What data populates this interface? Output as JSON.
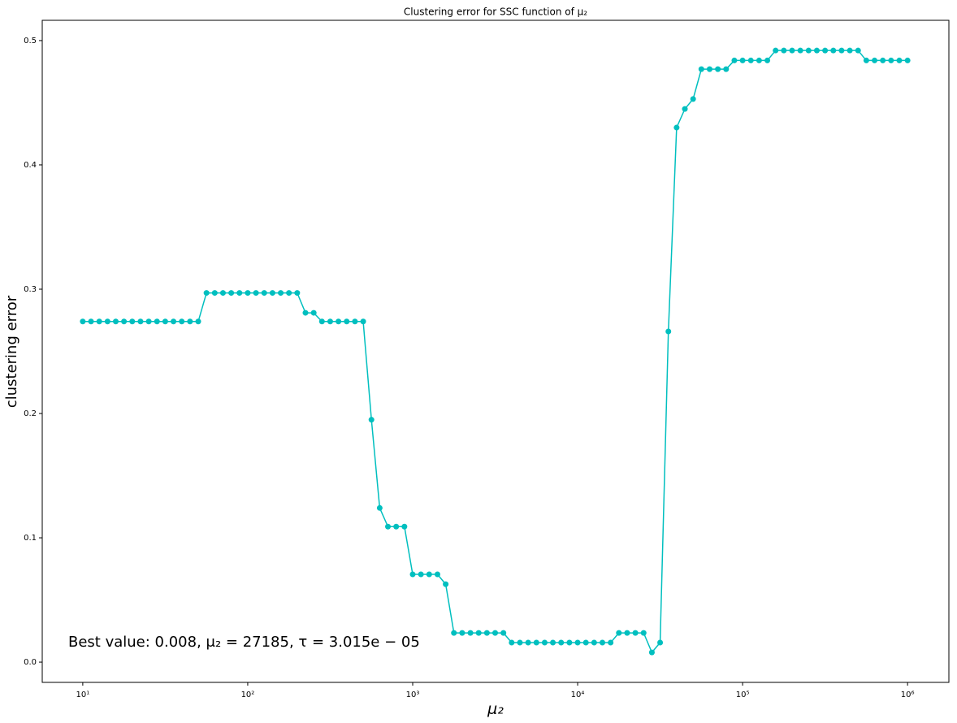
{
  "chart_data": {
    "type": "line",
    "title": "Clustering error for SSC function of μ₂",
    "x_label": "μ₂",
    "y_label": "clustering error",
    "annotation": "Best value: 0.008, μ₂ = 27185, τ = 3.015e − 05",
    "xscale": "log",
    "xlim": [
      5.68,
      1780000
    ],
    "ylim": [
      -0.0163,
      0.5163
    ],
    "xticks": [
      {
        "value": 10,
        "label": "10¹"
      },
      {
        "value": 100,
        "label": "10²"
      },
      {
        "value": 1000,
        "label": "10³"
      },
      {
        "value": 10000,
        "label": "10⁴"
      },
      {
        "value": 100000,
        "label": "10⁵"
      },
      {
        "value": 1000000,
        "label": "10⁶"
      }
    ],
    "yticks": [
      {
        "value": 0,
        "label": "0.0"
      },
      0.1,
      0.2,
      0.3,
      0.4,
      0.5
    ],
    "grid": false,
    "x": [
      10,
      11.22,
      12.59,
      14.13,
      15.85,
      17.78,
      19.95,
      22.39,
      25.12,
      28.18,
      31.62,
      35.48,
      39.81,
      44.67,
      50.12,
      56.23,
      63.1,
      70.79,
      79.43,
      89.13,
      100,
      112.2,
      125.9,
      141.3,
      158.5,
      177.8,
      199.5,
      223.9,
      251.2,
      281.8,
      316.2,
      354.8,
      398.1,
      446.7,
      501.2,
      562.3,
      631.0,
      707.9,
      794.3,
      891.3,
      1000,
      1122,
      1259,
      1413,
      1585,
      1778,
      1995,
      2239,
      2512,
      2818,
      3162,
      3548,
      3981,
      4467,
      5012,
      5623,
      6310,
      7079,
      7943,
      8913,
      10000,
      11220,
      12589,
      14125,
      15849,
      17783,
      19953,
      22387,
      25119,
      28184,
      31623,
      35481,
      39811,
      44668,
      50119,
      56234,
      63096,
      70795,
      79433,
      89125,
      100000,
      112202,
      125893,
      141254,
      158489,
      177828,
      199526,
      223872,
      251189,
      281838,
      316228,
      354813,
      398107,
      446684,
      501187,
      562341,
      630957,
      707946,
      794328,
      891251,
      1000000
    ],
    "series": [
      {
        "color": "#00bfbf",
        "values": [
          0.274,
          0.274,
          0.274,
          0.274,
          0.274,
          0.274,
          0.274,
          0.274,
          0.274,
          0.274,
          0.274,
          0.274,
          0.274,
          0.274,
          0.274,
          0.297,
          0.297,
          0.297,
          0.297,
          0.297,
          0.297,
          0.297,
          0.297,
          0.297,
          0.297,
          0.297,
          0.297,
          0.281,
          0.281,
          0.274,
          0.274,
          0.274,
          0.274,
          0.274,
          0.274,
          0.195,
          0.124,
          0.109,
          0.109,
          0.109,
          0.0706,
          0.0706,
          0.0706,
          0.0706,
          0.0627,
          0.0235,
          0.0235,
          0.0235,
          0.0235,
          0.0235,
          0.0235,
          0.0235,
          0.0157,
          0.0157,
          0.0157,
          0.0157,
          0.0157,
          0.0157,
          0.0157,
          0.0157,
          0.0157,
          0.0157,
          0.0157,
          0.0157,
          0.0157,
          0.0235,
          0.0235,
          0.0235,
          0.0235,
          0.0078,
          0.0157,
          0.266,
          0.43,
          0.445,
          0.453,
          0.477,
          0.477,
          0.477,
          0.477,
          0.484,
          0.484,
          0.484,
          0.484,
          0.484,
          0.492,
          0.492,
          0.492,
          0.492,
          0.492,
          0.492,
          0.492,
          0.492,
          0.492,
          0.492,
          0.492,
          0.484,
          0.484,
          0.484,
          0.484,
          0.484,
          0.484
        ]
      }
    ]
  }
}
